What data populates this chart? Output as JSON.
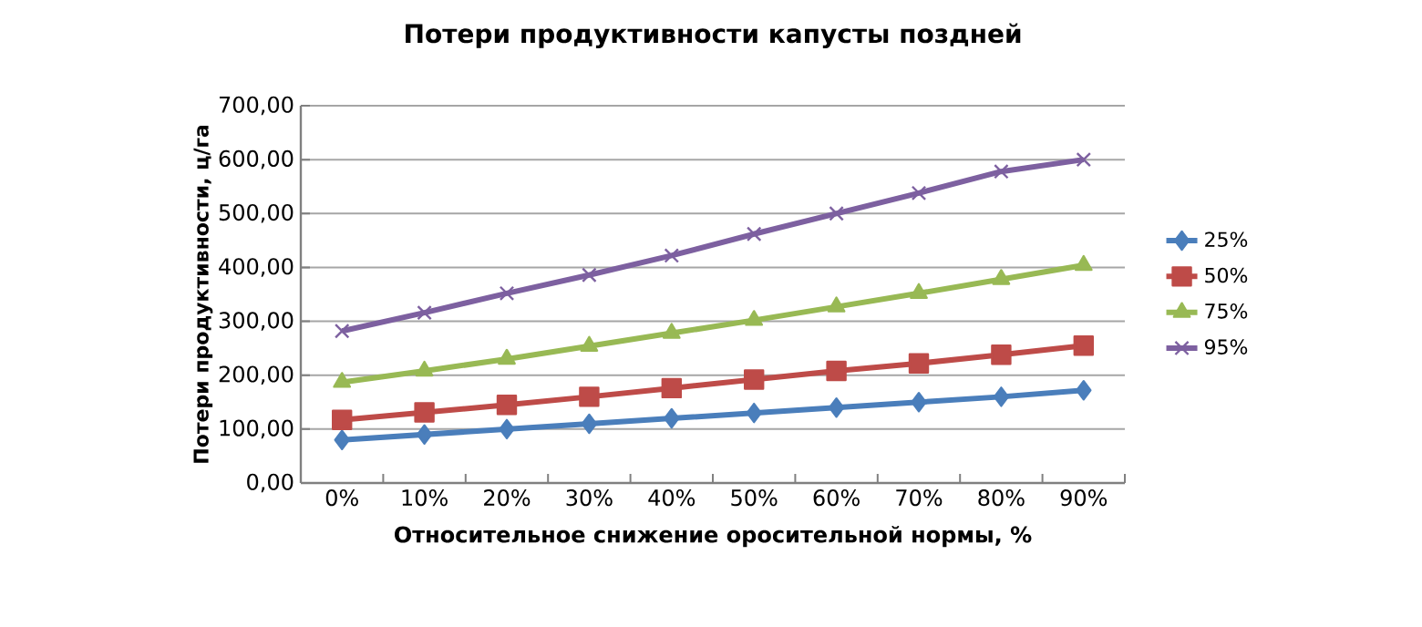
{
  "chart_data": {
    "type": "line",
    "title": "Потери продуктивности капусты поздней",
    "xlabel": "Относительное снижение оросительной нормы, %",
    "ylabel": "Потери продуктивности, ц/га",
    "categories": [
      "0%",
      "10%",
      "20%",
      "30%",
      "40%",
      "50%",
      "60%",
      "70%",
      "80%",
      "90%"
    ],
    "series": [
      {
        "name": "25%",
        "color": "#4a7ebb",
        "marker": "diamond",
        "values": [
          80,
          90,
          100,
          110,
          120,
          130,
          140,
          150,
          160,
          172
        ]
      },
      {
        "name": "50%",
        "color": "#be4b48",
        "marker": "square",
        "values": [
          117,
          131,
          145,
          160,
          176,
          192,
          208,
          222,
          238,
          255
        ]
      },
      {
        "name": "75%",
        "color": "#98b954",
        "marker": "triangle",
        "values": [
          187,
          208,
          230,
          254,
          278,
          302,
          327,
          352,
          378,
          404
        ]
      },
      {
        "name": "95%",
        "color": "#7d60a0",
        "marker": "cross",
        "values": [
          282,
          316,
          352,
          386,
          422,
          462,
          500,
          538,
          578,
          600
        ]
      }
    ],
    "ylim": [
      0,
      700
    ],
    "yticks": [
      {
        "value": 0,
        "label": "0,00"
      },
      {
        "value": 100,
        "label": "100,00"
      },
      {
        "value": 200,
        "label": "200,00"
      },
      {
        "value": 300,
        "label": "300,00"
      },
      {
        "value": 400,
        "label": "400,00"
      },
      {
        "value": 500,
        "label": "500,00"
      },
      {
        "value": 600,
        "label": "600,00"
      },
      {
        "value": 700,
        "label": "700,00"
      }
    ],
    "grid": "y",
    "legend": "right",
    "line_style": "solid"
  }
}
